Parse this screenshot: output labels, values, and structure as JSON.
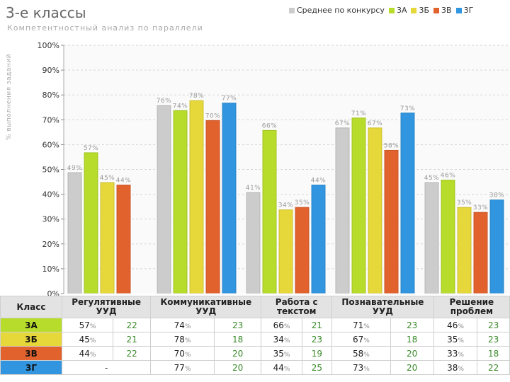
{
  "chart_data": {
    "type": "bar",
    "title": "3-е классы",
    "subtitle": "Компетентностный анализ по параллели",
    "ylabel": "% выполнения заданий",
    "ylim": [
      0,
      100
    ],
    "yticks": [
      "0%",
      "10%",
      "20%",
      "30%",
      "40%",
      "50%",
      "60%",
      "70%",
      "80%",
      "90%",
      "100%"
    ],
    "categories": [
      "Регулятивные УУД",
      "Коммуникативные УУД",
      "Работа с текстом",
      "Познавательные УУД",
      "Решение проблем"
    ],
    "series": [
      {
        "name": "Среднее по конкурсу",
        "color": "#cccccc",
        "values": [
          49,
          76,
          41,
          67,
          45
        ],
        "labels": [
          "49%",
          "76%",
          "41%",
          "67%",
          "45%"
        ]
      },
      {
        "name": "3А",
        "color": "#b8dc2c",
        "values": [
          57,
          74,
          66,
          71,
          46
        ],
        "labels": [
          "57%",
          "74%",
          "66%",
          "71%",
          "46%"
        ]
      },
      {
        "name": "3Б",
        "color": "#e6d83a",
        "values": [
          45,
          78,
          34,
          67,
          35
        ],
        "labels": [
          "45%",
          "78%",
          "34%",
          "67%",
          "35%"
        ]
      },
      {
        "name": "3В",
        "color": "#e2622e",
        "values": [
          44,
          70,
          35,
          58,
          33
        ],
        "labels": [
          "44%",
          "70%",
          "35%",
          "58%",
          "33%"
        ]
      },
      {
        "name": "3Г",
        "color": "#3196df",
        "values": [
          null,
          77,
          44,
          73,
          38
        ],
        "labels": [
          "",
          "77%",
          "44%",
          "73%",
          "38%"
        ]
      }
    ]
  },
  "table": {
    "header_class": "Класс",
    "headers": [
      "Регулятивные УУД",
      "Коммуникативные УУД",
      "Работа с текстом",
      "Познавательные УУД",
      "Решение проблем"
    ],
    "percent_sign": "%",
    "rows": [
      {
        "label": "3А",
        "color": "#b8dc2c",
        "cells": [
          {
            "pct": "57",
            "n": "22"
          },
          {
            "pct": "74",
            "n": "23"
          },
          {
            "pct": "66",
            "n": "21"
          },
          {
            "pct": "71",
            "n": "23"
          },
          {
            "pct": "46",
            "n": "23"
          }
        ]
      },
      {
        "label": "3Б",
        "color": "#e6d83a",
        "cells": [
          {
            "pct": "45",
            "n": "21"
          },
          {
            "pct": "78",
            "n": "18"
          },
          {
            "pct": "34",
            "n": "23"
          },
          {
            "pct": "67",
            "n": "18"
          },
          {
            "pct": "35",
            "n": "23"
          }
        ]
      },
      {
        "label": "3В",
        "color": "#e2622e",
        "cells": [
          {
            "pct": "44",
            "n": "22"
          },
          {
            "pct": "70",
            "n": "20"
          },
          {
            "pct": "35",
            "n": "19"
          },
          {
            "pct": "58",
            "n": "20"
          },
          {
            "pct": "33",
            "n": "18"
          }
        ]
      },
      {
        "label": "3Г",
        "color": "#3196df",
        "cells": [
          {
            "dash": "-"
          },
          {
            "pct": "77",
            "n": "20"
          },
          {
            "pct": "44",
            "n": "25"
          },
          {
            "pct": "73",
            "n": "20"
          },
          {
            "pct": "38",
            "n": "22"
          }
        ]
      }
    ]
  }
}
